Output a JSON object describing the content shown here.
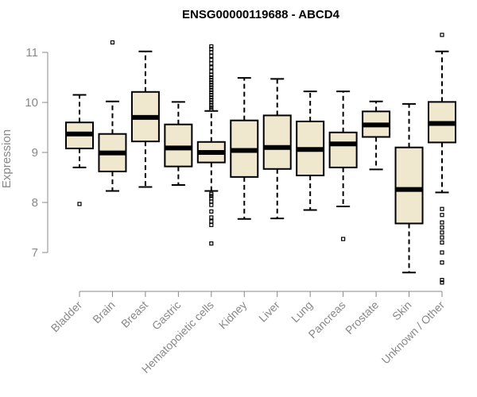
{
  "chart_data": {
    "type": "boxplot",
    "title": "ENSG00000119688 - ABCD4",
    "xlabel": "",
    "ylabel": "Expression",
    "ylim": [
      6.3,
      11.3
    ],
    "yticks": [
      7,
      8,
      9,
      10,
      11
    ],
    "box_color": "#efe8cf",
    "categories": [
      "Bladder",
      "Brain",
      "Breast",
      "Gastric",
      "Hematopoietic cells",
      "Kidney",
      "Liver",
      "Lung",
      "Pancreas",
      "Prostate",
      "Skin",
      "Unknown / Other"
    ],
    "boxes": [
      {
        "name": "Bladder",
        "whislo": 8.7,
        "q1": 9.08,
        "med": 9.37,
        "q3": 9.6,
        "whishi": 10.15,
        "outliers": [
          7.97
        ]
      },
      {
        "name": "Brain",
        "whislo": 8.23,
        "q1": 8.62,
        "med": 8.99,
        "q3": 9.37,
        "whishi": 10.02,
        "outliers": [
          11.2
        ]
      },
      {
        "name": "Breast",
        "whislo": 8.31,
        "q1": 9.22,
        "med": 9.7,
        "q3": 10.21,
        "whishi": 11.02,
        "outliers": []
      },
      {
        "name": "Gastric",
        "whislo": 8.35,
        "q1": 8.72,
        "med": 9.09,
        "q3": 9.56,
        "whishi": 10.01,
        "outliers": []
      },
      {
        "name": "Hematopoietic cells",
        "whislo": 8.23,
        "q1": 8.8,
        "med": 9.0,
        "q3": 9.21,
        "whishi": 9.83,
        "outliers": [
          7.18,
          7.55,
          7.62,
          7.7,
          7.82,
          7.95,
          8.02,
          8.08,
          8.13,
          8.17,
          9.86,
          9.9,
          9.95,
          10.0,
          10.05,
          10.1,
          10.15,
          10.2,
          10.25,
          10.3,
          10.35,
          10.4,
          10.45,
          10.5,
          10.55,
          10.62,
          10.7,
          10.78,
          10.85,
          10.93,
          11.0,
          11.07,
          11.12
        ]
      },
      {
        "name": "Kidney",
        "whislo": 7.67,
        "q1": 8.51,
        "med": 9.04,
        "q3": 9.64,
        "whishi": 10.49,
        "outliers": []
      },
      {
        "name": "Liver",
        "whislo": 7.68,
        "q1": 8.67,
        "med": 9.1,
        "q3": 9.74,
        "whishi": 10.47,
        "outliers": []
      },
      {
        "name": "Lung",
        "whislo": 7.85,
        "q1": 8.54,
        "med": 9.06,
        "q3": 9.62,
        "whishi": 10.22,
        "outliers": []
      },
      {
        "name": "Pancreas",
        "whislo": 7.92,
        "q1": 8.7,
        "med": 9.17,
        "q3": 9.4,
        "whishi": 10.22,
        "outliers": [
          7.27
        ]
      },
      {
        "name": "Prostate",
        "whislo": 8.66,
        "q1": 9.31,
        "med": 9.55,
        "q3": 9.82,
        "whishi": 10.02,
        "outliers": []
      },
      {
        "name": "Skin",
        "whislo": 6.6,
        "q1": 7.58,
        "med": 8.26,
        "q3": 9.1,
        "whishi": 9.97,
        "outliers": []
      },
      {
        "name": "Unknown / Other",
        "whislo": 8.2,
        "q1": 9.2,
        "med": 9.58,
        "q3": 10.01,
        "whishi": 11.02,
        "outliers": [
          11.35,
          6.4,
          6.45,
          6.8,
          7.0,
          7.2,
          7.3,
          7.4,
          7.5,
          7.6,
          7.75,
          7.87
        ]
      }
    ]
  }
}
